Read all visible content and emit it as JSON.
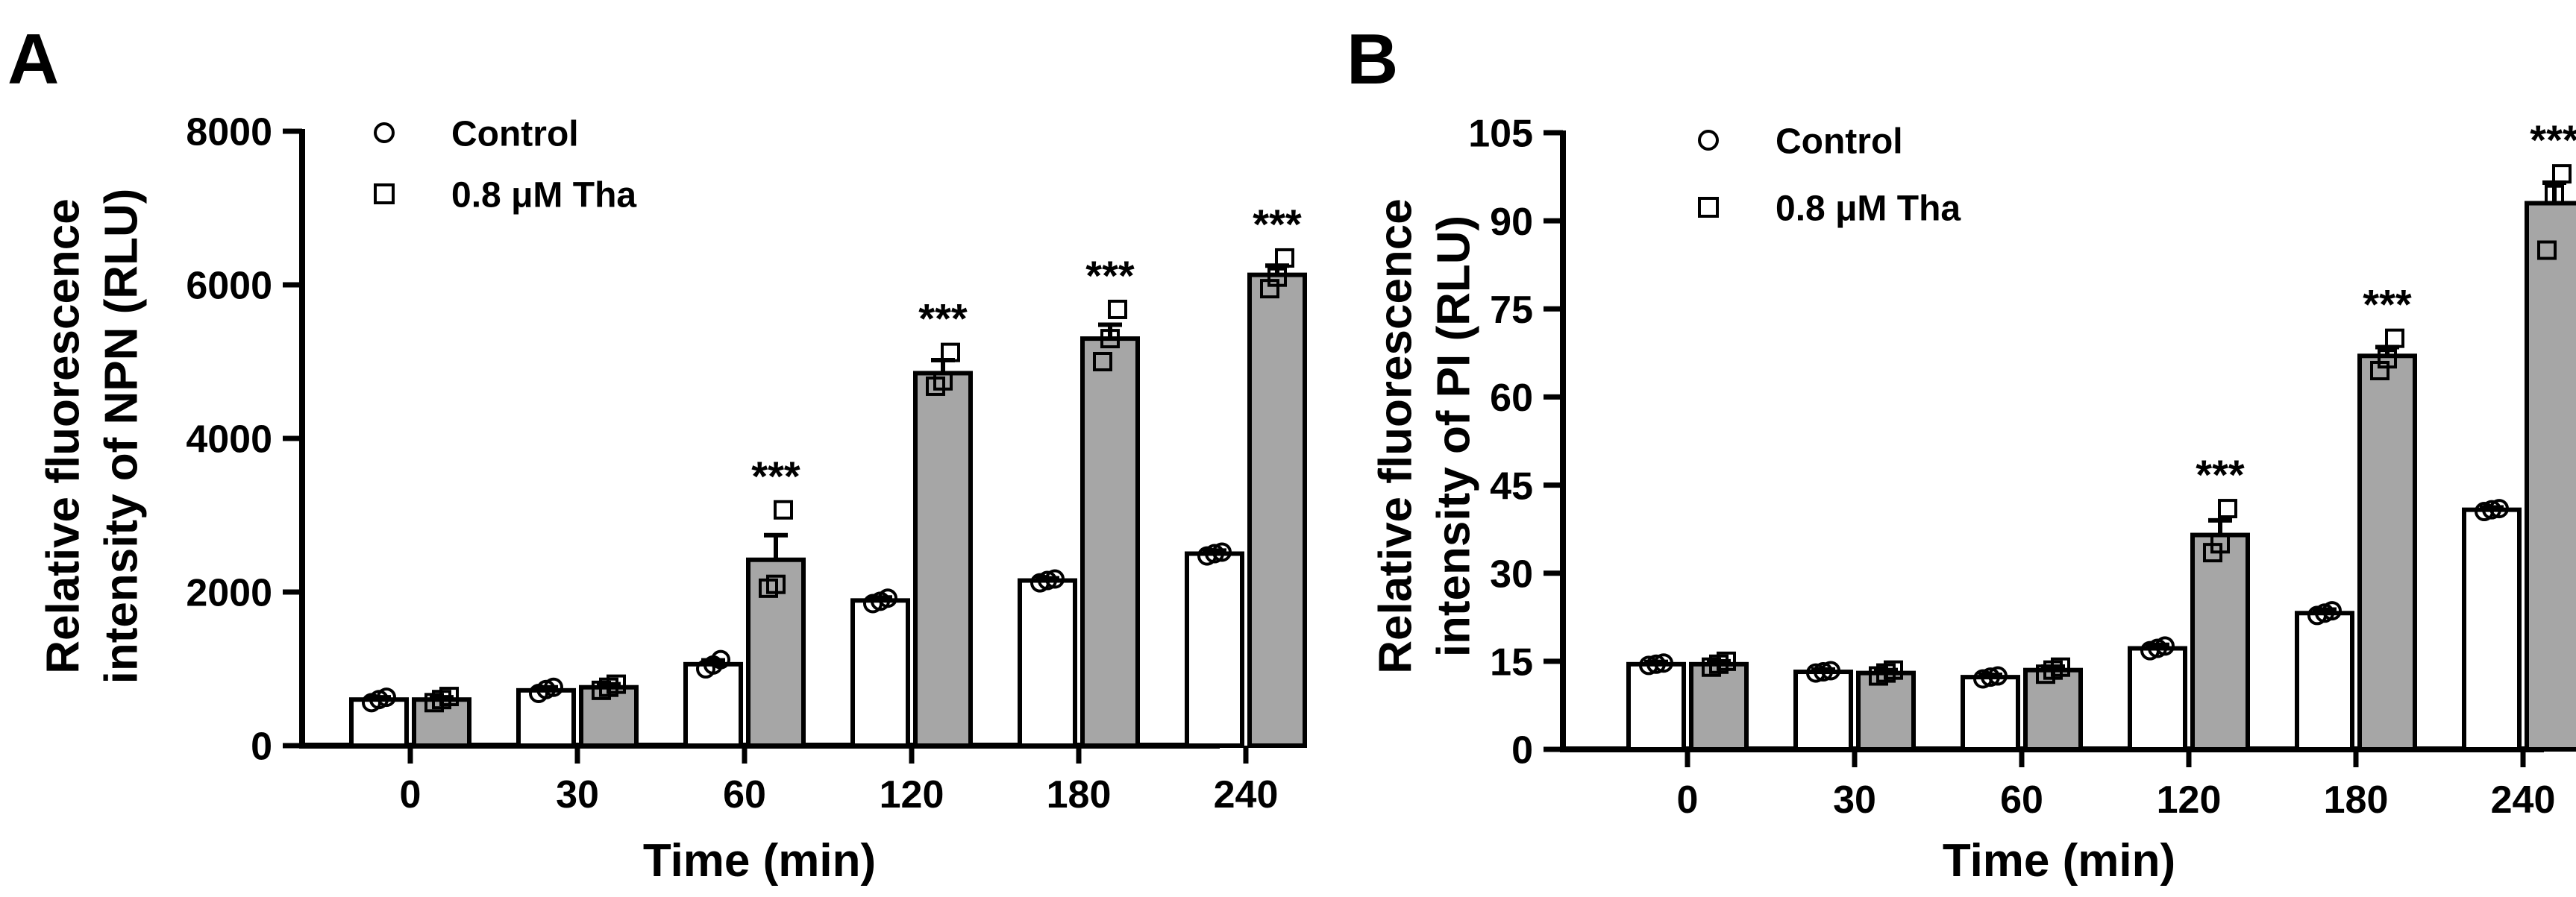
{
  "chart_data": [
    {
      "panel_label": "A",
      "type": "bar",
      "categories": [
        "0",
        "30",
        "60",
        "120",
        "180",
        "240"
      ],
      "xlabel": "Time (min)",
      "ylabel": [
        "Relative fluorescence",
        "intensity of NPN (RLU)"
      ],
      "ylim": [
        0,
        8000
      ],
      "yticks": [
        "0",
        "2000",
        "4000",
        "6000",
        "8000"
      ],
      "ytick_values": [
        0,
        2000,
        4000,
        6000,
        8000
      ],
      "legend_position": "top-left",
      "series": [
        {
          "name": "Control",
          "marker": "circle",
          "fill": "#ffffff",
          "values": [
            600,
            720,
            1060,
            1890,
            2150,
            2500
          ],
          "errors": [
            30,
            40,
            50,
            40,
            30,
            40
          ],
          "points": [
            [
              560,
              600,
              630
            ],
            [
              680,
              730,
              760
            ],
            [
              1000,
              1050,
              1120
            ],
            [
              1850,
              1880,
              1920
            ],
            [
              2120,
              2150,
              2170
            ],
            [
              2470,
              2500,
              2520
            ]
          ],
          "sig": [
            "",
            "",
            "",
            "",
            "",
            ""
          ]
        },
        {
          "name": "0.8 μM Tha",
          "marker": "square",
          "fill": "#a6a6a6",
          "values": [
            600,
            760,
            2420,
            4850,
            5300,
            6130
          ],
          "errors": [
            30,
            40,
            320,
            170,
            180,
            120
          ],
          "points": [
            [
              560,
              600,
              640
            ],
            [
              720,
              760,
              800
            ],
            [
              2050,
              2100,
              3070
            ],
            [
              4680,
              4750,
              5120
            ],
            [
              5000,
              5300,
              5680
            ],
            [
              5950,
              6100,
              6350
            ]
          ],
          "sig": [
            "",
            "",
            "***",
            "***",
            "***",
            "***"
          ]
        }
      ]
    },
    {
      "panel_label": "B",
      "type": "bar",
      "categories": [
        "0",
        "30",
        "60",
        "120",
        "180",
        "240"
      ],
      "xlabel": "Time (min)",
      "ylabel": [
        "Relative fluorescence",
        "intensity of PI (RLU)"
      ],
      "ylim": [
        0,
        105
      ],
      "yticks": [
        "0",
        "15",
        "30",
        "45",
        "60",
        "75",
        "90",
        "105"
      ],
      "ytick_values": [
        0,
        15,
        30,
        45,
        60,
        75,
        90,
        105
      ],
      "legend_position": "top-left",
      "series": [
        {
          "name": "Control",
          "marker": "circle",
          "fill": "#ffffff",
          "values": [
            14.5,
            13.2,
            12.3,
            17.2,
            23.2,
            40.8
          ],
          "errors": [
            0.4,
            0.4,
            0.4,
            0.6,
            0.6,
            0.4
          ],
          "points": [
            [
              14.3,
              14.5,
              14.7
            ],
            [
              13.0,
              13.2,
              13.4
            ],
            [
              12.0,
              12.3,
              12.5
            ],
            [
              16.8,
              17.2,
              17.6
            ],
            [
              22.8,
              23.2,
              23.6
            ],
            [
              40.5,
              40.8,
              41.0
            ]
          ],
          "sig": [
            "",
            "",
            "",
            "",
            "",
            ""
          ]
        },
        {
          "name": "0.8 μM Tha",
          "marker": "square",
          "fill": "#a6a6a6",
          "values": [
            14.5,
            13.0,
            13.5,
            36.5,
            67.0,
            93.0
          ],
          "errors": [
            0.5,
            0.5,
            0.6,
            2.5,
            1.5,
            3.5
          ],
          "points": [
            [
              14.0,
              14.5,
              15.0
            ],
            [
              12.5,
              13.0,
              13.5
            ],
            [
              12.8,
              13.5,
              14.0
            ],
            [
              33.5,
              35.0,
              41.0
            ],
            [
              64.5,
              66.5,
              70.0
            ],
            [
              85.0,
              94.5,
              98.0
            ]
          ],
          "sig": [
            "",
            "",
            "",
            "***",
            "***",
            "***"
          ]
        }
      ]
    }
  ]
}
